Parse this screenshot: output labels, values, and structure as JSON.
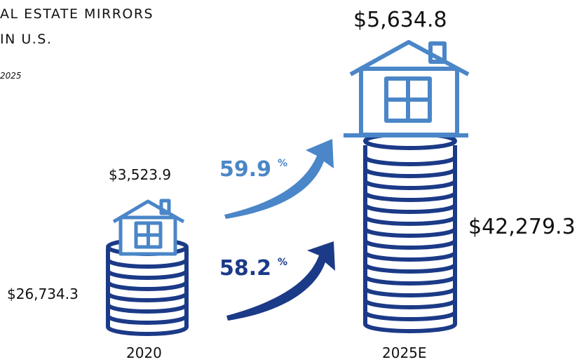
{
  "header": {
    "title_lines": [
      "AL ESTATE MIRRORS",
      "IN U.S."
    ],
    "subtitle": "2025"
  },
  "left": {
    "house_value": "$3,523.9",
    "stack_value": "$26,734.3",
    "year": "2020"
  },
  "right": {
    "house_value": "$5,634.8",
    "stack_value": "$42,279.3",
    "year": "2025E"
  },
  "growth": [
    {
      "value": "59.9",
      "unit": "%"
    },
    {
      "value": "58.2",
      "unit": "%"
    }
  ]
}
